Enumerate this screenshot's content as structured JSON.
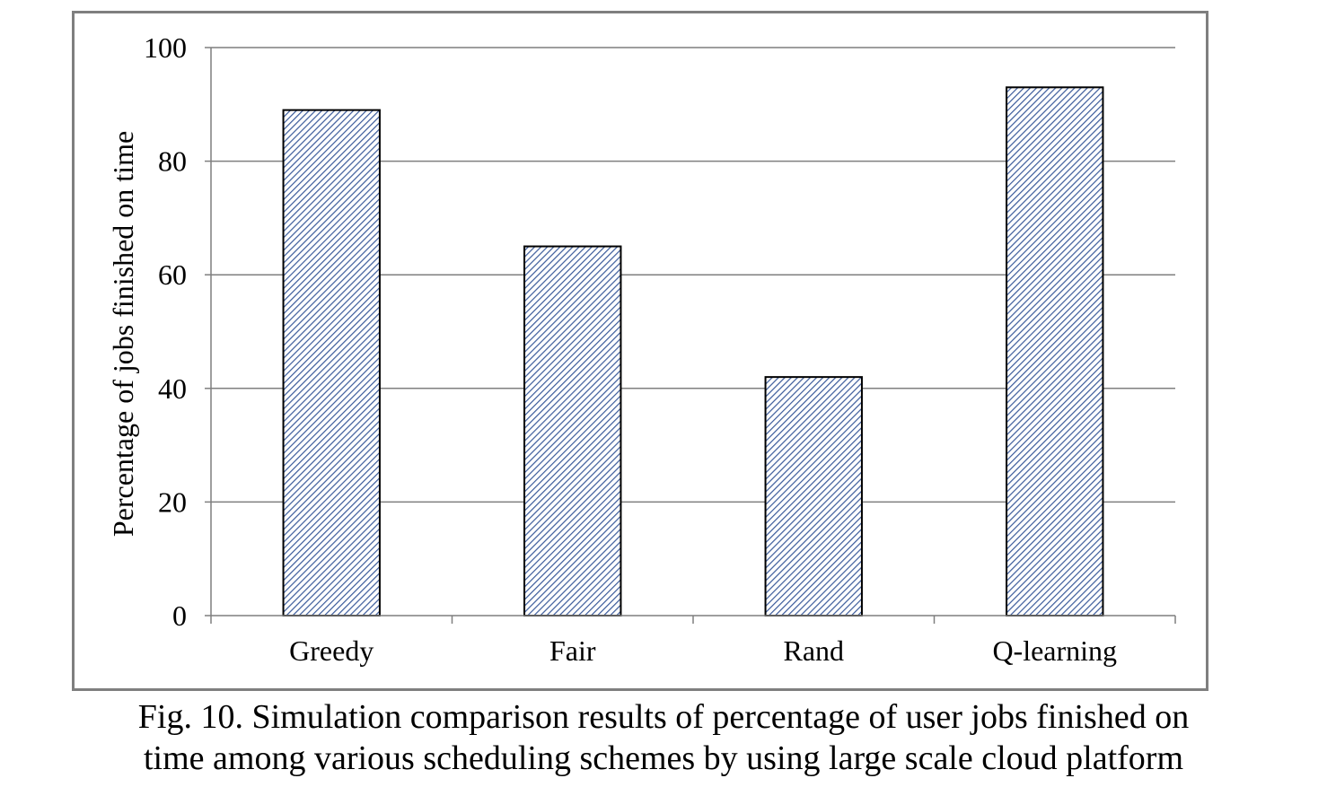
{
  "chart_data": {
    "type": "bar",
    "categories": [
      "Greedy",
      "Fair",
      "Rand",
      "Q-learning"
    ],
    "values": [
      89,
      65,
      42,
      93
    ],
    "xlabel": "",
    "ylabel": "Percentage of  jobs finished on time",
    "ylim": [
      0,
      100
    ],
    "yticks": [
      "0",
      "20",
      "40",
      "60",
      "80",
      "100"
    ],
    "grid": true,
    "legend": "none",
    "bar_fill": "diagonal hatch",
    "colors": {
      "hatch": "#3a5a9a",
      "bar_outline": "#000000",
      "grid": "#7f7f7f",
      "frame": "#7f7f7f"
    }
  },
  "caption": {
    "line1": "Fig. 10. Simulation comparison results of percentage of user jobs finished on",
    "line2": "time among various scheduling schemes by using large scale cloud platform"
  }
}
